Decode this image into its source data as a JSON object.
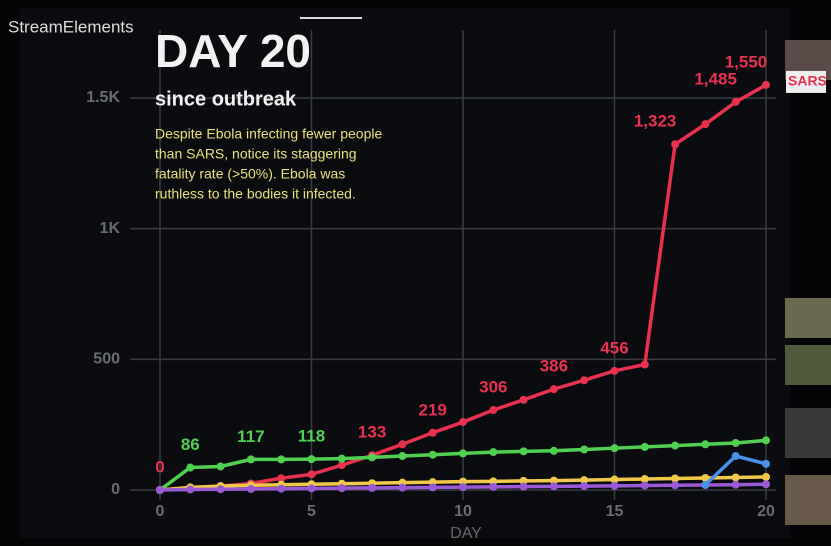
{
  "overlay": {
    "brand": "StreamElements",
    "headline": "DAY 20",
    "subhead": "since outbreak",
    "caption": [
      "Despite Ebola infecting fewer people",
      "than SARS, notice its staggering",
      "fatality rate (>50%). Ebola was",
      "ruthless to the bodies it infected."
    ]
  },
  "chart_data": {
    "type": "line",
    "x": [
      0,
      1,
      2,
      3,
      4,
      5,
      6,
      7,
      8,
      9,
      10,
      11,
      12,
      13,
      14,
      15,
      16,
      17,
      18,
      19,
      20
    ],
    "xlim": [
      0,
      20
    ],
    "xticks": [
      0,
      5,
      10,
      15,
      20
    ],
    "xlabel": "DAY",
    "ylim": [
      0,
      1500
    ],
    "yticks": [
      0,
      500,
      {
        "value": 1000,
        "label": "1K"
      },
      {
        "value": 1500,
        "label": "1.5K"
      }
    ],
    "grid": true,
    "series": [
      {
        "name": "SARS",
        "color": "#e8314f",
        "values": [
          0,
          5,
          15,
          25,
          45,
          60,
          95,
          133,
          175,
          219,
          260,
          306,
          345,
          386,
          420,
          456,
          480,
          1323,
          1400,
          1485,
          1550
        ],
        "value_labels": [
          "0",
          null,
          null,
          null,
          null,
          null,
          null,
          "133",
          null,
          "219",
          null,
          "306",
          null,
          "386",
          null,
          "456",
          null,
          "1,323",
          null,
          "1,485",
          "1,550"
        ]
      },
      {
        "color": "#4fd14f",
        "values": [
          0,
          86,
          90,
          117,
          117,
          118,
          120,
          125,
          130,
          135,
          140,
          145,
          148,
          150,
          155,
          160,
          165,
          170,
          175,
          180,
          190
        ],
        "value_labels": [
          null,
          "86",
          null,
          "117",
          null,
          "118",
          null,
          null,
          null,
          null,
          null,
          null,
          null,
          null,
          null,
          null,
          null,
          null,
          null,
          null,
          null
        ]
      },
      {
        "color": "#f2c84a",
        "values": [
          0,
          10,
          15,
          18,
          20,
          22,
          24,
          26,
          28,
          30,
          32,
          33,
          35,
          36,
          38,
          40,
          42,
          44,
          46,
          48,
          50
        ]
      },
      {
        "color": "#9b59d6",
        "values": [
          0,
          2,
          3,
          4,
          5,
          6,
          7,
          8,
          9,
          10,
          11,
          12,
          13,
          14,
          15,
          16,
          17,
          18,
          19,
          20,
          22
        ]
      },
      {
        "color": "#4a8fe8",
        "values": [
          null,
          null,
          null,
          null,
          null,
          null,
          null,
          null,
          null,
          null,
          null,
          null,
          null,
          null,
          null,
          null,
          null,
          null,
          20,
          130,
          100
        ]
      }
    ]
  }
}
